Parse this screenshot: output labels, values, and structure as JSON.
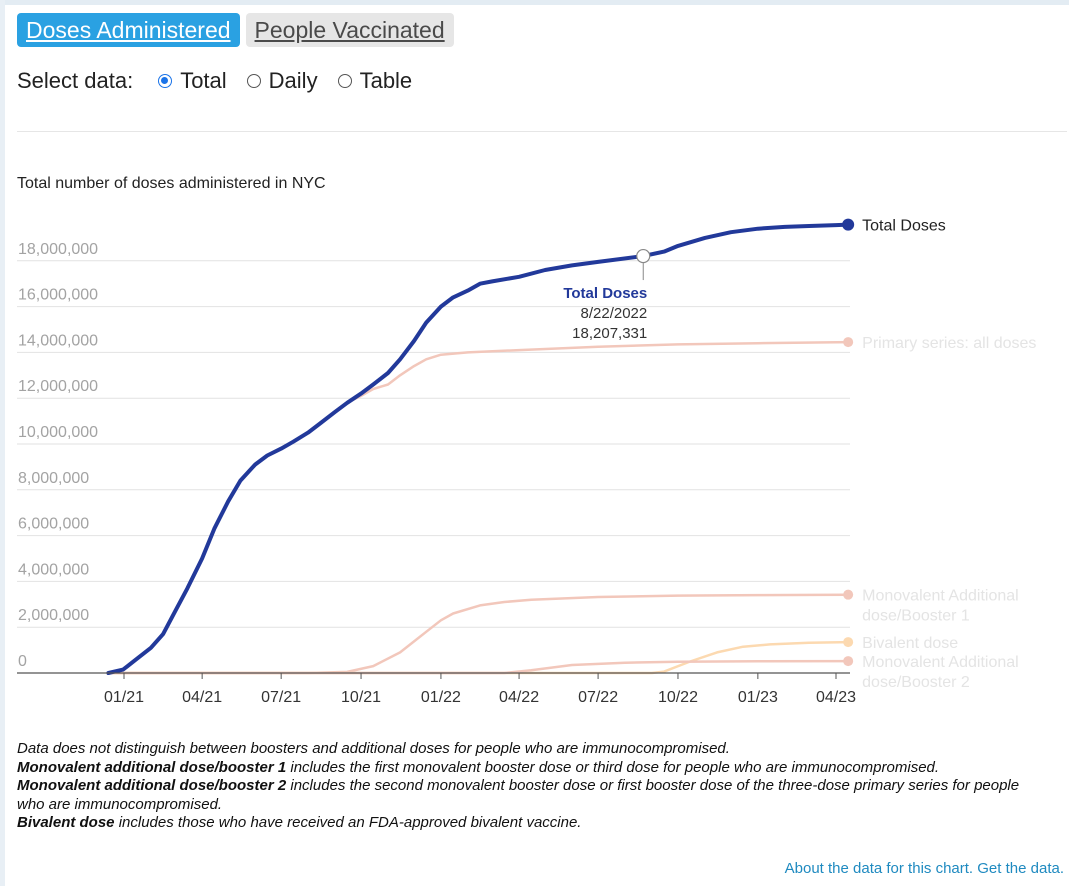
{
  "tabs": [
    {
      "label": "Doses Administered",
      "active": true
    },
    {
      "label": "People Vaccinated",
      "active": false
    }
  ],
  "select": {
    "label": "Select data:",
    "options": [
      {
        "label": "Total",
        "checked": true
      },
      {
        "label": "Daily",
        "checked": false
      },
      {
        "label": "Table",
        "checked": false
      }
    ]
  },
  "chart_data": {
    "type": "line",
    "title": "Total number of doses administered in NYC",
    "y_ticks": [
      {
        "value": 0,
        "label": "0"
      },
      {
        "value": 2000000,
        "label": "2,000,000"
      },
      {
        "value": 4000000,
        "label": "4,000,000"
      },
      {
        "value": 6000000,
        "label": "6,000,000"
      },
      {
        "value": 8000000,
        "label": "8,000,000"
      },
      {
        "value": 10000000,
        "label": "10,000,000"
      },
      {
        "value": 12000000,
        "label": "12,000,000"
      },
      {
        "value": 14000000,
        "label": "14,000,000"
      },
      {
        "value": 16000000,
        "label": "16,000,000"
      },
      {
        "value": 18000000,
        "label": "18,000,000"
      }
    ],
    "ylim": [
      0,
      19000000
    ],
    "x_ticks": [
      {
        "value": "2021-01-01",
        "label": "01/21"
      },
      {
        "value": "2021-04-01",
        "label": "04/21"
      },
      {
        "value": "2021-07-01",
        "label": "07/21"
      },
      {
        "value": "2021-10-01",
        "label": "10/21"
      },
      {
        "value": "2022-01-01",
        "label": "01/22"
      },
      {
        "value": "2022-04-01",
        "label": "04/22"
      },
      {
        "value": "2022-07-01",
        "label": "07/22"
      },
      {
        "value": "2022-10-01",
        "label": "10/22"
      },
      {
        "value": "2023-01-01",
        "label": "01/23"
      },
      {
        "value": "2023-04-01",
        "label": "04/23"
      }
    ],
    "xlim": [
      "2020-12-01",
      "2023-05-01"
    ],
    "grid": true,
    "series": [
      {
        "name": "Total Doses",
        "label_lines": [
          "Total Doses"
        ],
        "color": "#22399a",
        "emphasis": true,
        "points": [
          [
            "2020-12-14",
            0
          ],
          [
            "2020-12-31",
            150000
          ],
          [
            "2021-01-15",
            600000
          ],
          [
            "2021-02-01",
            1100000
          ],
          [
            "2021-02-15",
            1700000
          ],
          [
            "2021-03-01",
            2700000
          ],
          [
            "2021-03-15",
            3700000
          ],
          [
            "2021-04-01",
            5000000
          ],
          [
            "2021-04-15",
            6300000
          ],
          [
            "2021-05-01",
            7500000
          ],
          [
            "2021-05-15",
            8400000
          ],
          [
            "2021-06-01",
            9100000
          ],
          [
            "2021-06-15",
            9500000
          ],
          [
            "2021-07-01",
            9800000
          ],
          [
            "2021-07-15",
            10100000
          ],
          [
            "2021-08-01",
            10500000
          ],
          [
            "2021-08-15",
            10900000
          ],
          [
            "2021-09-01",
            11400000
          ],
          [
            "2021-09-15",
            11800000
          ],
          [
            "2021-10-01",
            12200000
          ],
          [
            "2021-10-15",
            12600000
          ],
          [
            "2021-11-01",
            13100000
          ],
          [
            "2021-11-15",
            13700000
          ],
          [
            "2021-12-01",
            14500000
          ],
          [
            "2021-12-15",
            15300000
          ],
          [
            "2022-01-01",
            16000000
          ],
          [
            "2022-01-15",
            16400000
          ],
          [
            "2022-02-01",
            16700000
          ],
          [
            "2022-02-15",
            17000000
          ],
          [
            "2022-03-01",
            17100000
          ],
          [
            "2022-04-01",
            17300000
          ],
          [
            "2022-05-01",
            17600000
          ],
          [
            "2022-06-01",
            17800000
          ],
          [
            "2022-07-01",
            17950000
          ],
          [
            "2022-08-22",
            18207331
          ],
          [
            "2022-09-15",
            18400000
          ],
          [
            "2022-10-01",
            18650000
          ],
          [
            "2022-11-01",
            19000000
          ],
          [
            "2022-12-01",
            19250000
          ],
          [
            "2023-01-01",
            19400000
          ],
          [
            "2023-02-01",
            19480000
          ],
          [
            "2023-03-01",
            19520000
          ],
          [
            "2023-04-01",
            19560000
          ],
          [
            "2023-04-15",
            19580000
          ]
        ]
      },
      {
        "name": "Primary series: all doses",
        "label_lines": [
          "Primary series: all doses"
        ],
        "color": "#f2c7bb",
        "emphasis": false,
        "points": [
          [
            "2020-12-14",
            0
          ],
          [
            "2020-12-31",
            150000
          ],
          [
            "2021-01-15",
            600000
          ],
          [
            "2021-02-01",
            1100000
          ],
          [
            "2021-02-15",
            1700000
          ],
          [
            "2021-03-01",
            2700000
          ],
          [
            "2021-03-15",
            3700000
          ],
          [
            "2021-04-01",
            5000000
          ],
          [
            "2021-04-15",
            6300000
          ],
          [
            "2021-05-01",
            7500000
          ],
          [
            "2021-05-15",
            8400000
          ],
          [
            "2021-06-01",
            9100000
          ],
          [
            "2021-06-15",
            9500000
          ],
          [
            "2021-07-01",
            9800000
          ],
          [
            "2021-07-15",
            10100000
          ],
          [
            "2021-08-01",
            10500000
          ],
          [
            "2021-08-15",
            10900000
          ],
          [
            "2021-09-01",
            11400000
          ],
          [
            "2021-09-15",
            11800000
          ],
          [
            "2021-10-01",
            12100000
          ],
          [
            "2021-10-15",
            12400000
          ],
          [
            "2021-11-01",
            12600000
          ],
          [
            "2021-11-15",
            13000000
          ],
          [
            "2021-12-01",
            13400000
          ],
          [
            "2021-12-15",
            13700000
          ],
          [
            "2022-01-01",
            13900000
          ],
          [
            "2022-02-01",
            14000000
          ],
          [
            "2022-04-01",
            14100000
          ],
          [
            "2022-07-01",
            14250000
          ],
          [
            "2022-10-01",
            14350000
          ],
          [
            "2023-01-01",
            14400000
          ],
          [
            "2023-04-15",
            14450000
          ]
        ]
      },
      {
        "name": "Monovalent Additional dose/Booster 1",
        "label_lines": [
          "Monovalent Additional",
          "dose/Booster 1"
        ],
        "color": "#f2c7bb",
        "emphasis": false,
        "points": [
          [
            "2020-12-14",
            0
          ],
          [
            "2021-08-01",
            0
          ],
          [
            "2021-09-15",
            50000
          ],
          [
            "2021-10-15",
            300000
          ],
          [
            "2021-11-15",
            900000
          ],
          [
            "2021-12-15",
            1800000
          ],
          [
            "2022-01-01",
            2300000
          ],
          [
            "2022-01-15",
            2600000
          ],
          [
            "2022-02-15",
            2950000
          ],
          [
            "2022-03-15",
            3100000
          ],
          [
            "2022-04-15",
            3200000
          ],
          [
            "2022-07-01",
            3320000
          ],
          [
            "2022-10-01",
            3380000
          ],
          [
            "2023-01-01",
            3400000
          ],
          [
            "2023-04-15",
            3420000
          ]
        ]
      },
      {
        "name": "Bivalent dose",
        "label_lines": [
          "Bivalent dose"
        ],
        "color": "#fcd9b0",
        "emphasis": false,
        "points": [
          [
            "2020-12-14",
            0
          ],
          [
            "2022-09-01",
            0
          ],
          [
            "2022-09-15",
            60000
          ],
          [
            "2022-10-15",
            500000
          ],
          [
            "2022-11-15",
            900000
          ],
          [
            "2022-12-15",
            1150000
          ],
          [
            "2023-01-15",
            1250000
          ],
          [
            "2023-03-01",
            1320000
          ],
          [
            "2023-04-15",
            1350000
          ]
        ]
      },
      {
        "name": "Monovalent Additional dose/Booster 2",
        "label_lines": [
          "Monovalent Additional",
          "dose/Booster 2"
        ],
        "color": "#f2c7bb",
        "emphasis": false,
        "points": [
          [
            "2020-12-14",
            0
          ],
          [
            "2022-03-15",
            0
          ],
          [
            "2022-04-15",
            120000
          ],
          [
            "2022-06-01",
            350000
          ],
          [
            "2022-08-01",
            450000
          ],
          [
            "2022-10-01",
            490000
          ],
          [
            "2023-01-01",
            510000
          ],
          [
            "2023-04-15",
            520000
          ]
        ]
      }
    ],
    "tooltip": {
      "series": "Total Doses",
      "date": "8/22/2022",
      "x": "2022-08-22",
      "value": 18207331,
      "value_label": "18,207,331"
    }
  },
  "notes": [
    {
      "bold": "",
      "text": "Data does not distinguish between boosters and additional doses for people who are immunocompromised."
    },
    {
      "bold": "Monovalent additional dose/booster 1",
      "text": " includes the first monovalent booster dose or third dose for people who are immunocompromised."
    },
    {
      "bold": "Monovalent additional dose/booster 2",
      "text": " includes the second monovalent booster dose or first booster dose of the three-dose primary series for people who are immunocompromised."
    },
    {
      "bold": "Bivalent dose",
      "text": " includes those who have received an FDA-approved bivalent vaccine."
    }
  ],
  "footer": {
    "about_link": "About the data for this chart.",
    "get_data_link": "Get the data."
  }
}
